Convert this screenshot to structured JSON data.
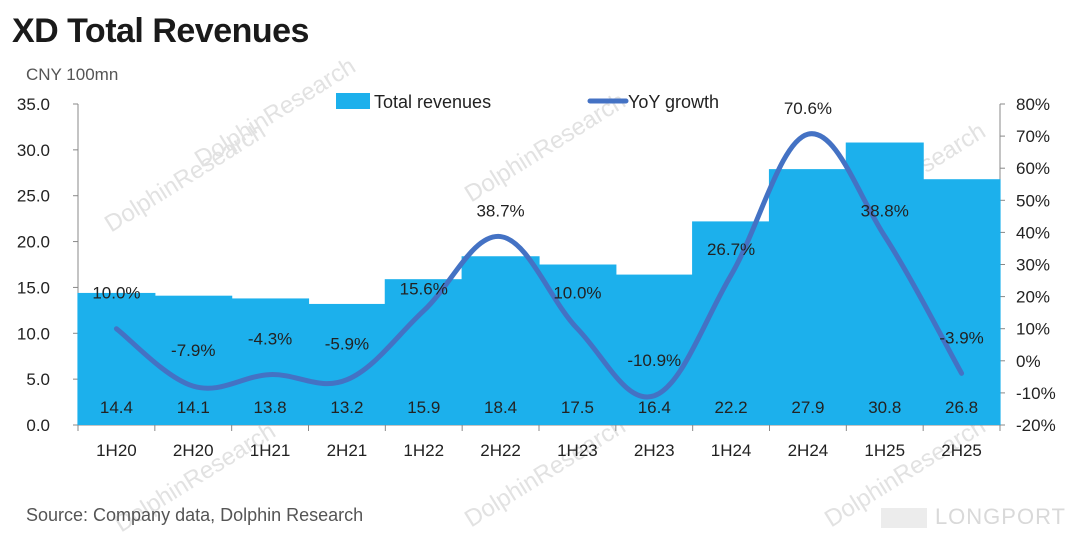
{
  "header": {
    "title": "XD Total Revenues",
    "unit": "CNY 100mn"
  },
  "footer": {
    "source": "Source: Company data, Dolphin Research",
    "brand": "LONGPORT"
  },
  "watermark": "DolphinResearch",
  "colors": {
    "bar": "#1cb0ec",
    "line": "#4472c4"
  },
  "chart_data": {
    "type": "bar",
    "categories": [
      "1H20",
      "2H20",
      "1H21",
      "2H21",
      "1H22",
      "2H22",
      "1H23",
      "2H23",
      "1H24",
      "2H24",
      "1H25",
      "2H25"
    ],
    "series": [
      {
        "name": "Total revenues",
        "type": "bar",
        "axis": "left",
        "values": [
          14.4,
          14.1,
          13.8,
          13.2,
          15.9,
          18.4,
          17.5,
          16.4,
          22.2,
          27.9,
          30.8,
          26.8
        ],
        "labels": [
          "14.4",
          "14.1",
          "13.8",
          "13.2",
          "15.9",
          "18.4",
          "17.5",
          "16.4",
          "22.2",
          "27.9",
          "30.8",
          "26.8"
        ]
      },
      {
        "name": "YoY growth",
        "type": "line",
        "axis": "right",
        "values": [
          10.0,
          -7.9,
          -4.3,
          -5.9,
          15.6,
          38.7,
          10.0,
          -10.9,
          26.7,
          70.6,
          38.8,
          -3.9
        ],
        "labels": [
          "10.0%",
          "-7.9%",
          "-4.3%",
          "-5.9%",
          "15.6%",
          "38.7%",
          "10.0%",
          "-10.9%",
          "26.7%",
          "70.6%",
          "38.8%",
          "-3.9%"
        ]
      }
    ],
    "y_left": {
      "min": 0,
      "max": 35,
      "step": 5,
      "ticks": [
        "0.0",
        "5.0",
        "10.0",
        "15.0",
        "20.0",
        "25.0",
        "30.0",
        "35.0"
      ]
    },
    "y_right": {
      "min": -20,
      "max": 80,
      "step": 10,
      "ticks": [
        "-20%",
        "-10%",
        "0%",
        "10%",
        "20%",
        "30%",
        "40%",
        "50%",
        "60%",
        "70%",
        "80%"
      ]
    },
    "legend": "top-center",
    "grid": false
  }
}
